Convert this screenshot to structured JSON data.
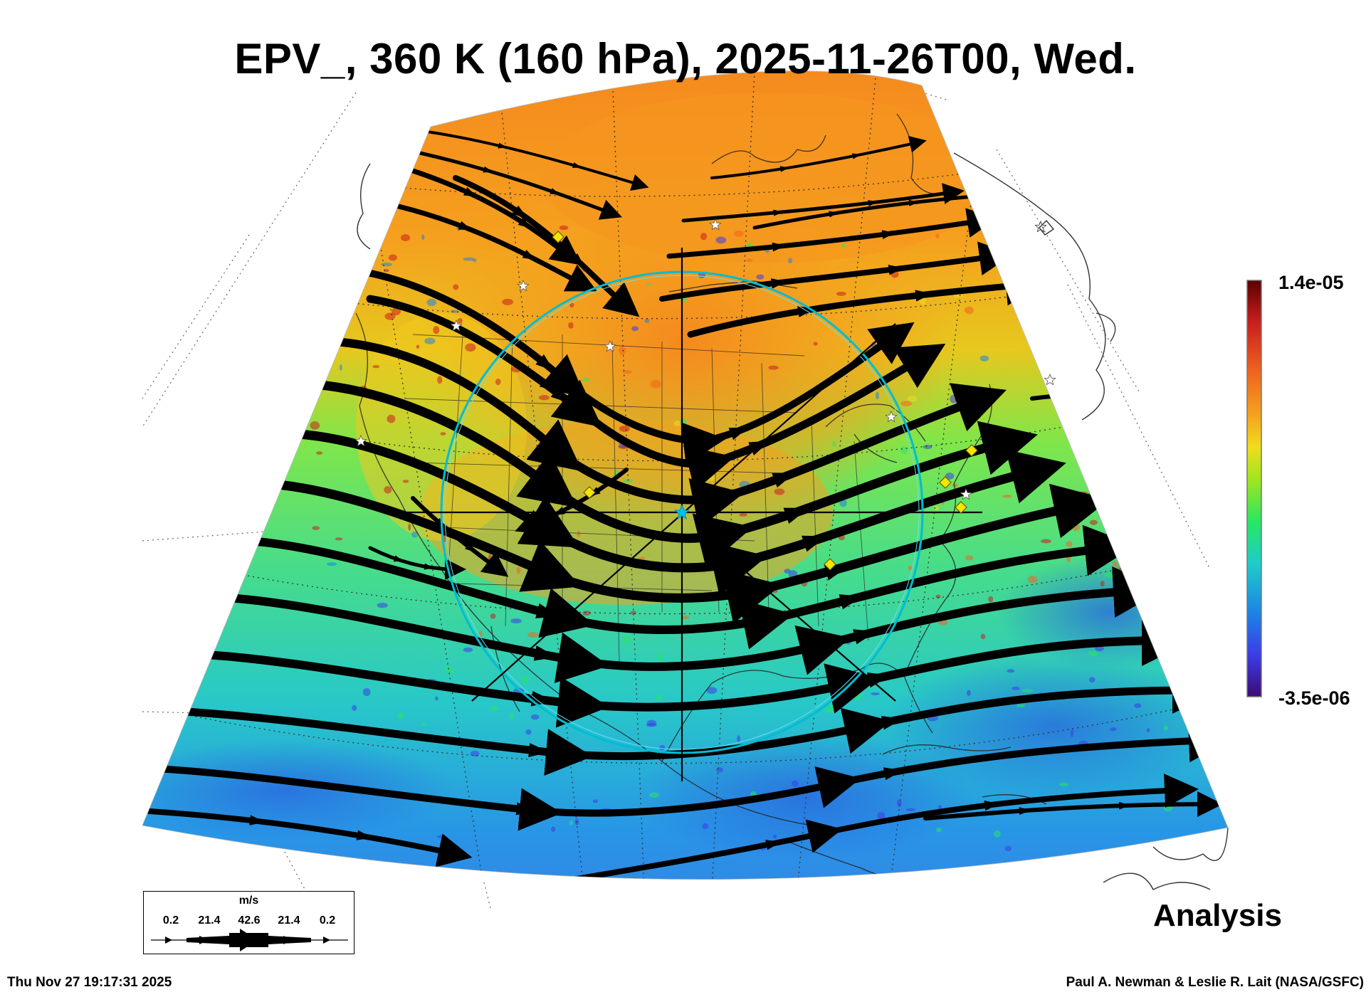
{
  "title": "EPV_, 360 K (160 hPa), 2025-11-26T00, Wed.",
  "label_analysis": "Analysis",
  "footer": {
    "timestamp": "Thu Nov 27 19:17:31 2025",
    "credit": "Paul A. Newman & Leslie R. Lait (NASA/GSFC)"
  },
  "colorbar": {
    "max_label": "1.4e-05",
    "min_label": "-3.5e-06",
    "colors": [
      "#5a0000",
      "#c81e1e",
      "#f0641e",
      "#f5a01e",
      "#f0dc1e",
      "#9ee61e",
      "#28e664",
      "#1ecdc8",
      "#1e82e6",
      "#3c3ce6",
      "#3c0a78"
    ]
  },
  "wind_legend": {
    "unit": "m/s",
    "ticks": [
      "0.2",
      "21.4",
      "42.6",
      "21.4",
      "0.2"
    ]
  },
  "map": {
    "projection": "polar stereographic sector",
    "features": [
      "EPV shading",
      "wind streamlines with arrows",
      "lat/lon grid (dotted)",
      "coastlines",
      "state borders",
      "cyan range circle",
      "crosshair lines",
      "white star markers",
      "yellow diamond markers"
    ]
  }
}
